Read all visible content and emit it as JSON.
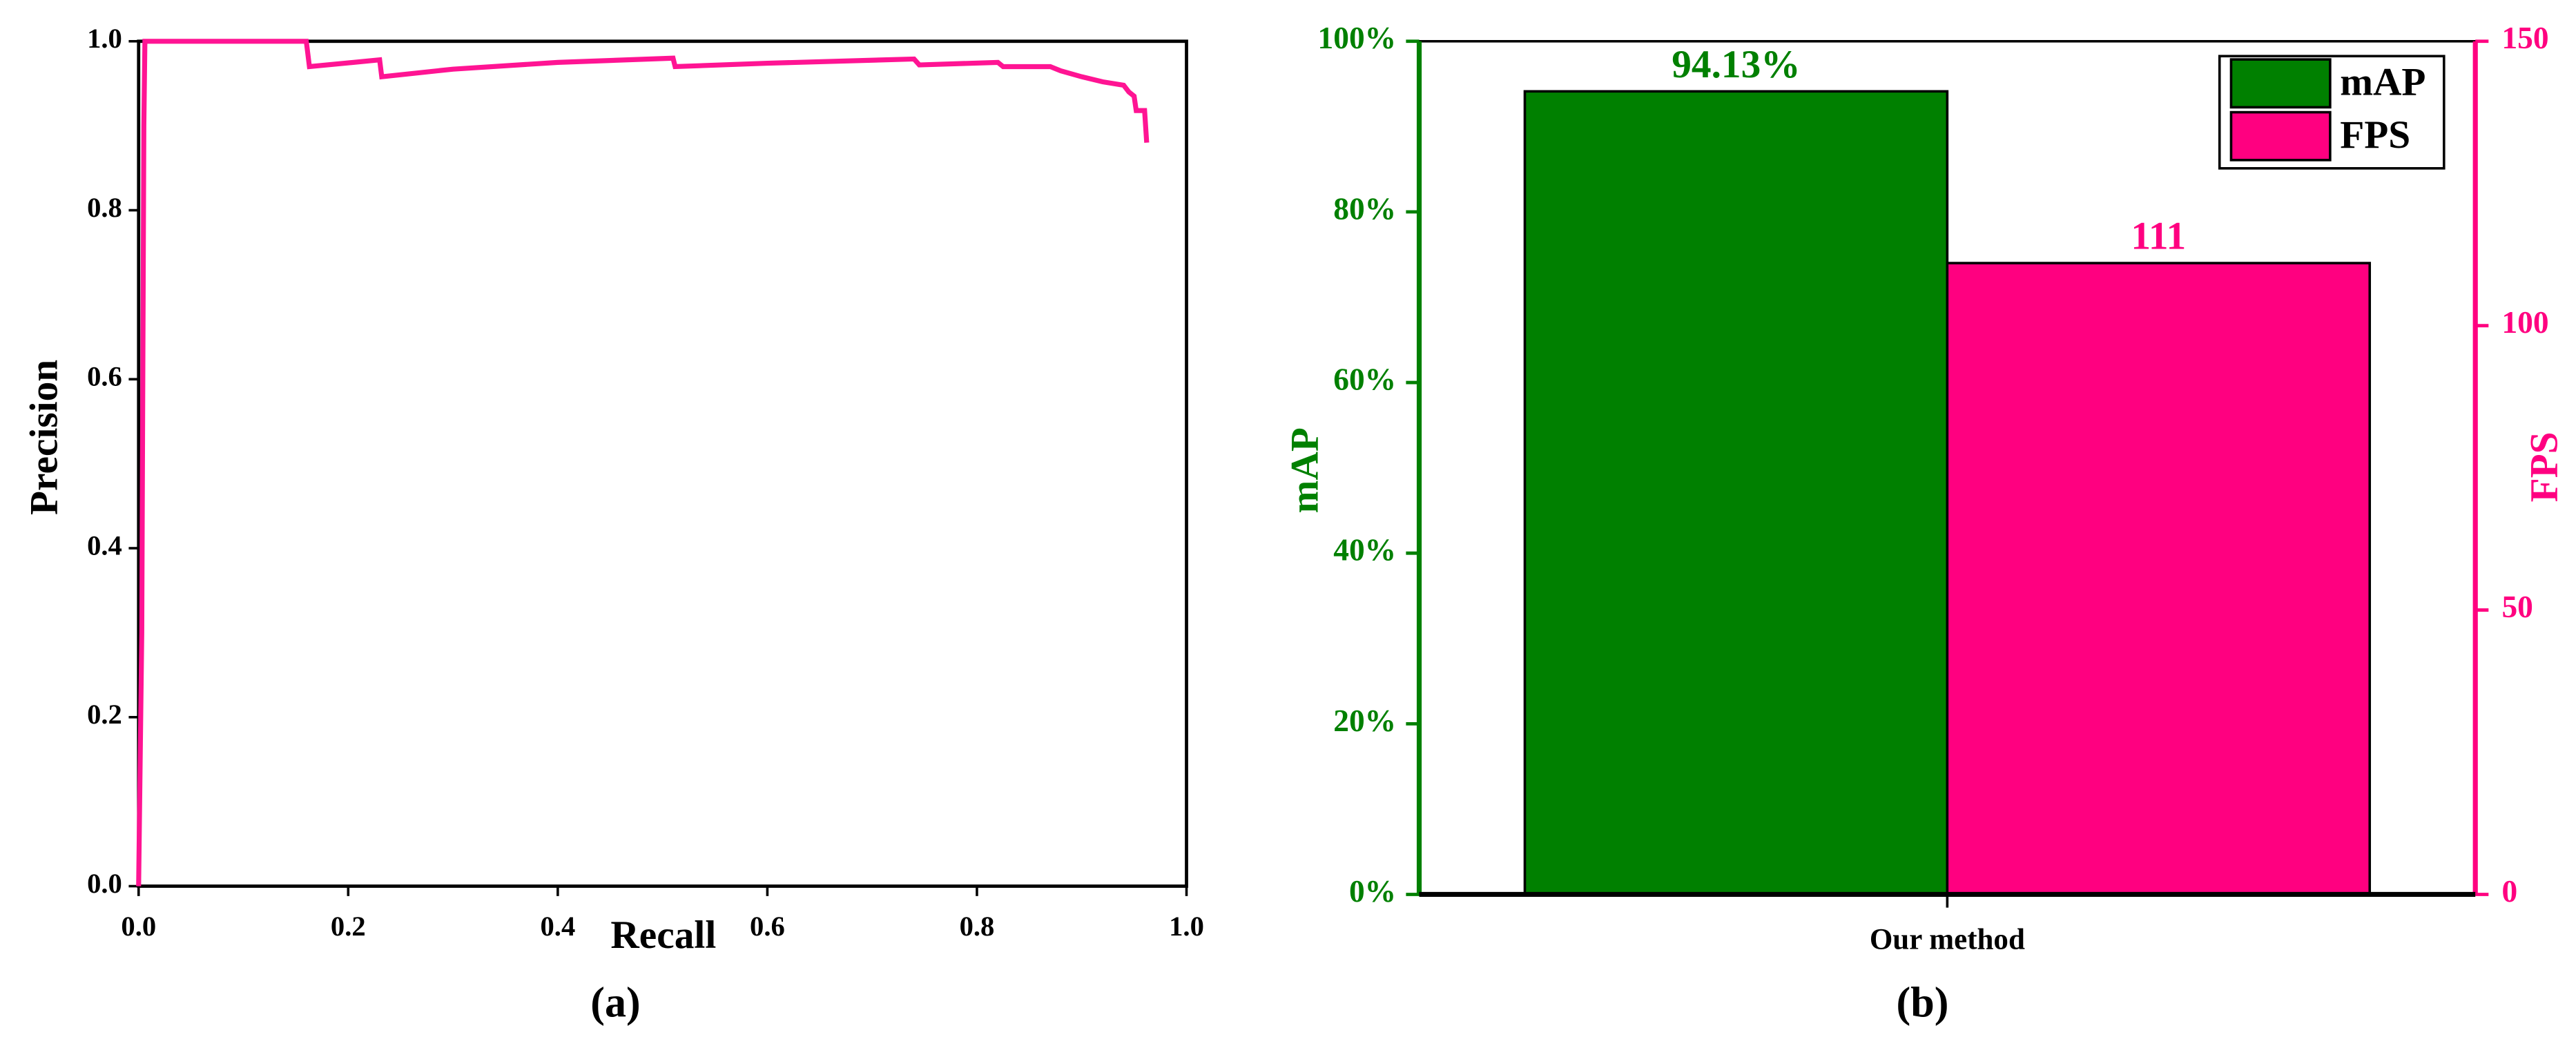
{
  "chart_data": [
    {
      "type": "line",
      "xlabel": "Recall",
      "ylabel": "Precision",
      "caption": "(a)",
      "color": "#ff1493",
      "x": [
        0,
        0.003,
        0.005,
        0.006,
        0.16,
        0.163,
        0.23,
        0.232,
        0.3,
        0.4,
        0.51,
        0.512,
        0.6,
        0.74,
        0.745,
        0.82,
        0.825,
        0.87,
        0.88,
        0.9,
        0.92,
        0.94,
        0.945,
        0.95,
        0.952,
        0.96,
        0.962
      ],
      "values": [
        0,
        0.3,
        0.9,
        1.0,
        1.0,
        0.97,
        0.978,
        0.958,
        0.967,
        0.975,
        0.98,
        0.97,
        0.974,
        0.979,
        0.972,
        0.975,
        0.97,
        0.97,
        0.965,
        0.958,
        0.952,
        0.948,
        0.94,
        0.935,
        0.918,
        0.918,
        0.88
      ],
      "xlim": [
        0,
        1
      ],
      "ylim": [
        0,
        1
      ],
      "xticks": [
        {
          "value": 0,
          "label": "0.0"
        },
        0.2,
        0.4,
        0.6,
        0.8,
        {
          "value": 1,
          "label": "1.0"
        }
      ],
      "yticks": [
        {
          "value": 0,
          "label": "0.0"
        },
        0.2,
        0.4,
        0.6,
        0.8,
        {
          "value": 1,
          "label": "1.0"
        }
      ]
    },
    {
      "type": "bar",
      "categories": [
        "Our method"
      ],
      "ylabel": "mAP",
      "y2label": "FPS",
      "caption": "(b)",
      "legend": "upper right",
      "series": [
        {
          "name": "mAP",
          "color": "#008000",
          "values": [
            94.13
          ],
          "value_labels": [
            "94.13%"
          ]
        },
        {
          "name": "FPS",
          "color": "#ff0080",
          "values": [
            111
          ],
          "axis": "y2"
        }
      ],
      "ylim": [
        0,
        100
      ],
      "yticks": [
        {
          "value": 0,
          "label": "0%"
        },
        {
          "value": 20,
          "label": "20%"
        },
        {
          "value": 40,
          "label": "40%"
        },
        {
          "value": 60,
          "label": "60%"
        },
        {
          "value": 80,
          "label": "80%"
        },
        {
          "value": 100,
          "label": "100%"
        }
      ],
      "y2lim": [
        0,
        150
      ],
      "y2ticks": [
        0,
        50,
        100,
        150
      ]
    }
  ]
}
